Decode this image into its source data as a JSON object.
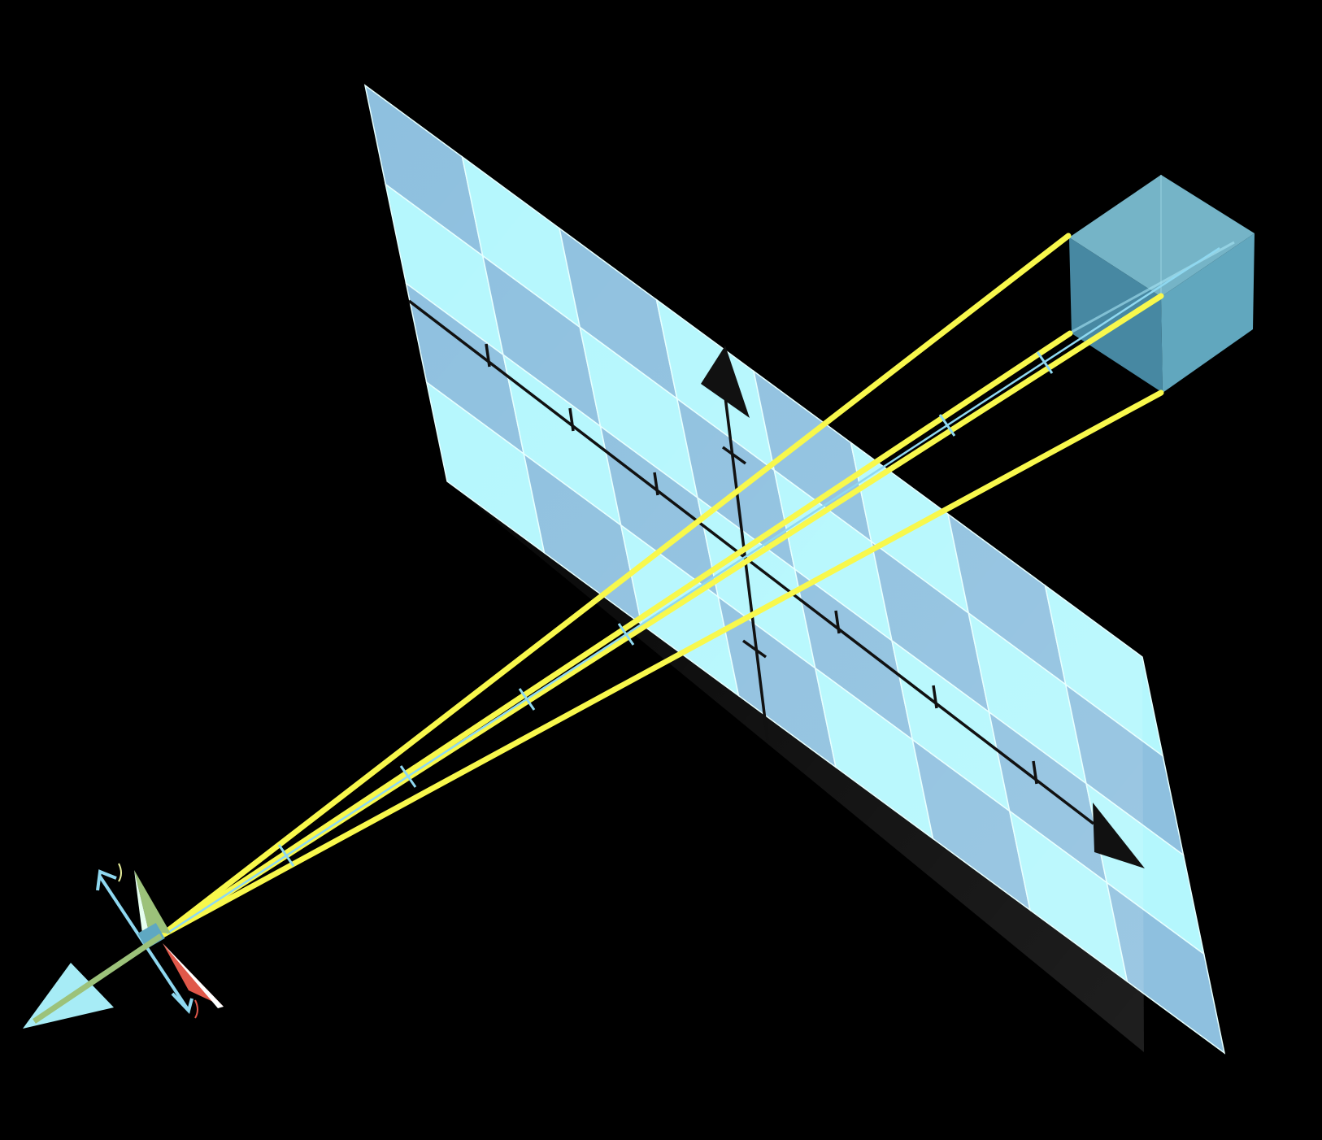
{
  "scene": {
    "colors": {
      "background": "#000000",
      "plane_light": "#b4f7fd",
      "plane_dark": "#8ec0df",
      "plane_edge": "#e6ffff",
      "axis": "#111111",
      "ray": "#f8f84c",
      "cube_light": "#79c1d8",
      "cube_mid": "#5fa8c2",
      "cube_dark": "#4b8fab",
      "camera_green": "#9cc27a",
      "camera_red": "#e0584a",
      "camera_blue": "#8fd8f0"
    },
    "icons": {
      "plane": "checkered-image-plane",
      "cube": "cube-object",
      "camera": "camera-frame-axes",
      "arrow": "arrowhead"
    }
  }
}
